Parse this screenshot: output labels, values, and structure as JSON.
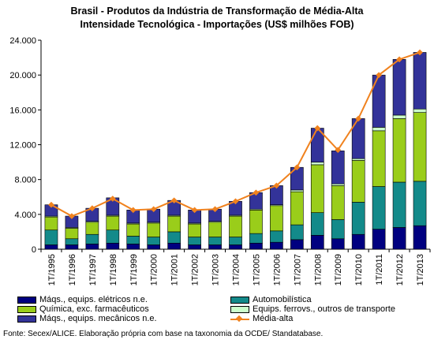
{
  "chart_data": {
    "type": "bar",
    "stacked": true,
    "title_lines": [
      "Brasil - Produtos da Indústria de Transformação de Média-Alta",
      "Intensidade Tecnológica - Importações (US$ milhões FOB)"
    ],
    "categories": [
      "1T/1995",
      "1T/1996",
      "1T/1997",
      "1T/1998",
      "1T/1999",
      "1T/2000",
      "1T/2001",
      "1T/2002",
      "1T/2003",
      "1T/2004",
      "1T/2005",
      "1T/2006",
      "1T/2007",
      "1T/2008",
      "1T/2009",
      "1T/2010",
      "1T/2011",
      "1T/2012",
      "1T/2013"
    ],
    "ylim": [
      0,
      24000
    ],
    "yticks": [
      0,
      4000,
      8000,
      12000,
      16000,
      20000,
      24000
    ],
    "ytick_labels": [
      "0",
      "4.000",
      "8.000",
      "12.000",
      "16.000",
      "20.000",
      "24.000"
    ],
    "series": [
      {
        "name": "Máqs., equips. elétricos n.e.",
        "color": "#000080",
        "values": [
          500,
          500,
          600,
          700,
          600,
          500,
          700,
          500,
          500,
          500,
          700,
          800,
          1100,
          1600,
          1200,
          1700,
          2300,
          2500,
          2700
        ]
      },
      {
        "name": "Automobilística",
        "color": "#138a8a",
        "values": [
          1700,
          700,
          1100,
          1500,
          900,
          900,
          1300,
          900,
          900,
          900,
          1100,
          1300,
          1700,
          2600,
          2200,
          3700,
          4900,
          5200,
          5100
        ]
      },
      {
        "name": "Química, exc. farmacêuticos",
        "color": "#9acd1a",
        "values": [
          1500,
          1200,
          1400,
          1600,
          1400,
          1600,
          1800,
          1500,
          1700,
          2400,
          2700,
          2900,
          3800,
          5500,
          3900,
          4800,
          6400,
          7300,
          7900
        ]
      },
      {
        "name": "Equips. ferrovs., outros de transporte",
        "color": "#ccffcc",
        "values": [
          100,
          100,
          100,
          100,
          100,
          100,
          100,
          100,
          100,
          100,
          100,
          100,
          200,
          300,
          200,
          200,
          400,
          400,
          400
        ]
      },
      {
        "name": "Máqs., equips. mecânicos n.e.",
        "color": "#333399",
        "values": [
          1300,
          1300,
          1500,
          2000,
          1500,
          1500,
          1700,
          1500,
          1400,
          1600,
          1900,
          2200,
          2600,
          3900,
          3800,
          4600,
          6000,
          6400,
          6500
        ]
      }
    ],
    "line_series": {
      "name": "Média-alta",
      "color": "#f0821e",
      "values": [
        5100,
        3800,
        4700,
        5800,
        4500,
        4600,
        5600,
        4500,
        4600,
        5500,
        6500,
        7300,
        9400,
        13900,
        11400,
        15000,
        20000,
        21800,
        22600
      ]
    },
    "grid": false,
    "legend_position": "bottom"
  },
  "source": "Fonte: Secex/ALICE. Elaboração própria com base na taxonomia da OCDE/ Standatabase."
}
